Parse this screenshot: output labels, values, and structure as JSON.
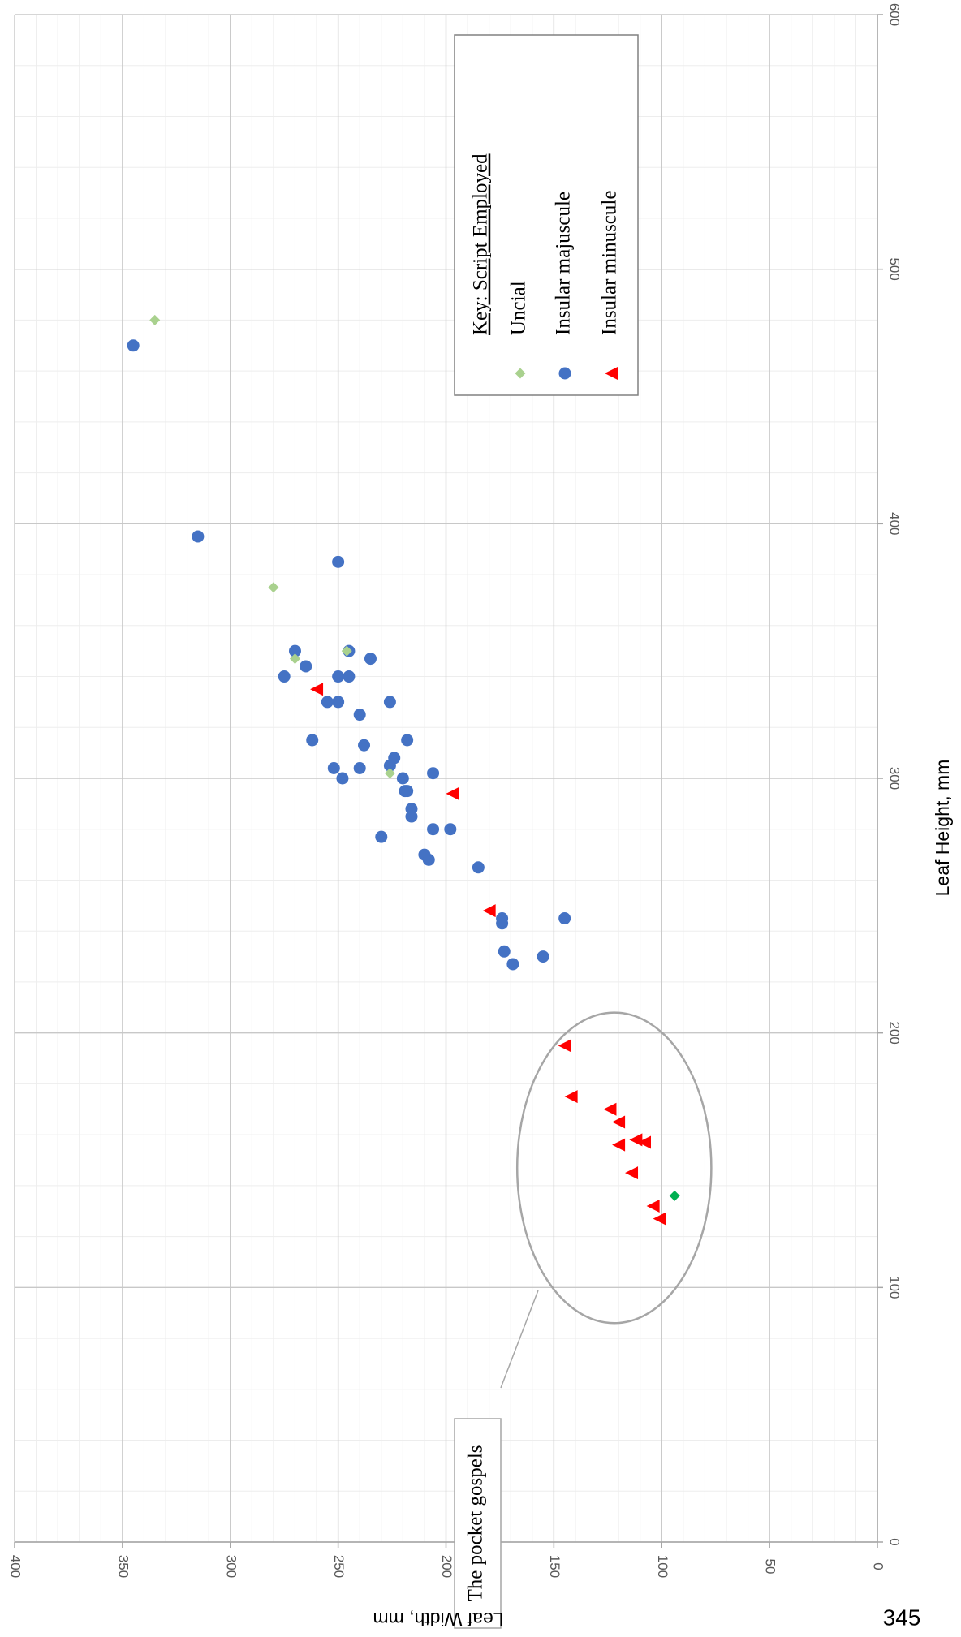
{
  "chart_data": {
    "type": "scatter",
    "orientation": "rotated-90-clockwise",
    "x_axis": {
      "label": "Leaf Height, mm",
      "range": [
        0,
        600
      ],
      "major_ticks": [
        0,
        100,
        200,
        300,
        400,
        500,
        600
      ],
      "minor_step": 20
    },
    "y_axis": {
      "label": "Leaf Width, mm",
      "range": [
        0,
        400
      ],
      "major_ticks": [
        0,
        50,
        100,
        150,
        200,
        250,
        300,
        350,
        400
      ],
      "minor_step": 10
    },
    "grid": true,
    "legend": {
      "title": "Key: Script Employed",
      "placement": "top-right"
    },
    "series": [
      {
        "name": "Uncial",
        "marker": "diamond",
        "color": "#a9d18e",
        "points": [
          {
            "x": 480,
            "y": 335
          },
          {
            "x": 375,
            "y": 280
          },
          {
            "x": 350,
            "y": 246
          },
          {
            "x": 347,
            "y": 270
          },
          {
            "x": 302,
            "y": 226
          },
          {
            "x": 136,
            "y": 94
          }
        ],
        "highlight_points": [
          {
            "x": 136,
            "y": 94,
            "color": "#00b050"
          }
        ]
      },
      {
        "name": "Insular majuscule",
        "marker": "circle",
        "color": "#4472c4",
        "points": [
          {
            "x": 470,
            "y": 345
          },
          {
            "x": 395,
            "y": 315
          },
          {
            "x": 385,
            "y": 250
          },
          {
            "x": 350,
            "y": 270
          },
          {
            "x": 350,
            "y": 245
          },
          {
            "x": 347,
            "y": 235
          },
          {
            "x": 344,
            "y": 265
          },
          {
            "x": 340,
            "y": 275
          },
          {
            "x": 340,
            "y": 250
          },
          {
            "x": 340,
            "y": 245
          },
          {
            "x": 330,
            "y": 255
          },
          {
            "x": 330,
            "y": 250
          },
          {
            "x": 330,
            "y": 226
          },
          {
            "x": 325,
            "y": 240
          },
          {
            "x": 315,
            "y": 262
          },
          {
            "x": 315,
            "y": 218
          },
          {
            "x": 313,
            "y": 238
          },
          {
            "x": 308,
            "y": 224
          },
          {
            "x": 305,
            "y": 226
          },
          {
            "x": 304,
            "y": 252
          },
          {
            "x": 304,
            "y": 240
          },
          {
            "x": 302,
            "y": 206
          },
          {
            "x": 300,
            "y": 248
          },
          {
            "x": 300,
            "y": 220
          },
          {
            "x": 295,
            "y": 219
          },
          {
            "x": 295,
            "y": 218
          },
          {
            "x": 288,
            "y": 216
          },
          {
            "x": 285,
            "y": 216
          },
          {
            "x": 280,
            "y": 206
          },
          {
            "x": 280,
            "y": 198
          },
          {
            "x": 277,
            "y": 230
          },
          {
            "x": 270,
            "y": 210
          },
          {
            "x": 268,
            "y": 208
          },
          {
            "x": 265,
            "y": 185
          },
          {
            "x": 245,
            "y": 174
          },
          {
            "x": 245,
            "y": 145
          },
          {
            "x": 243,
            "y": 174
          },
          {
            "x": 232,
            "y": 173
          },
          {
            "x": 230,
            "y": 155
          },
          {
            "x": 227,
            "y": 169
          }
        ]
      },
      {
        "name": "Insular minuscule",
        "marker": "triangle",
        "color": "#ff0000",
        "points": [
          {
            "x": 335,
            "y": 260
          },
          {
            "x": 294,
            "y": 197
          },
          {
            "x": 248,
            "y": 180
          },
          {
            "x": 195,
            "y": 145
          },
          {
            "x": 175,
            "y": 142
          },
          {
            "x": 170,
            "y": 124
          },
          {
            "x": 165,
            "y": 120
          },
          {
            "x": 158,
            "y": 112
          },
          {
            "x": 157,
            "y": 108
          },
          {
            "x": 156,
            "y": 120
          },
          {
            "x": 145,
            "y": 114
          },
          {
            "x": 132,
            "y": 104
          },
          {
            "x": 127,
            "y": 101
          }
        ]
      }
    ],
    "annotations": [
      {
        "text": "The pocket gospels",
        "shape": "ellipse",
        "ellipse_center": {
          "x": 147,
          "y": 122
        },
        "ellipse_radii": {
          "x": 61,
          "y": 45
        }
      }
    ],
    "corner_label": "345"
  }
}
